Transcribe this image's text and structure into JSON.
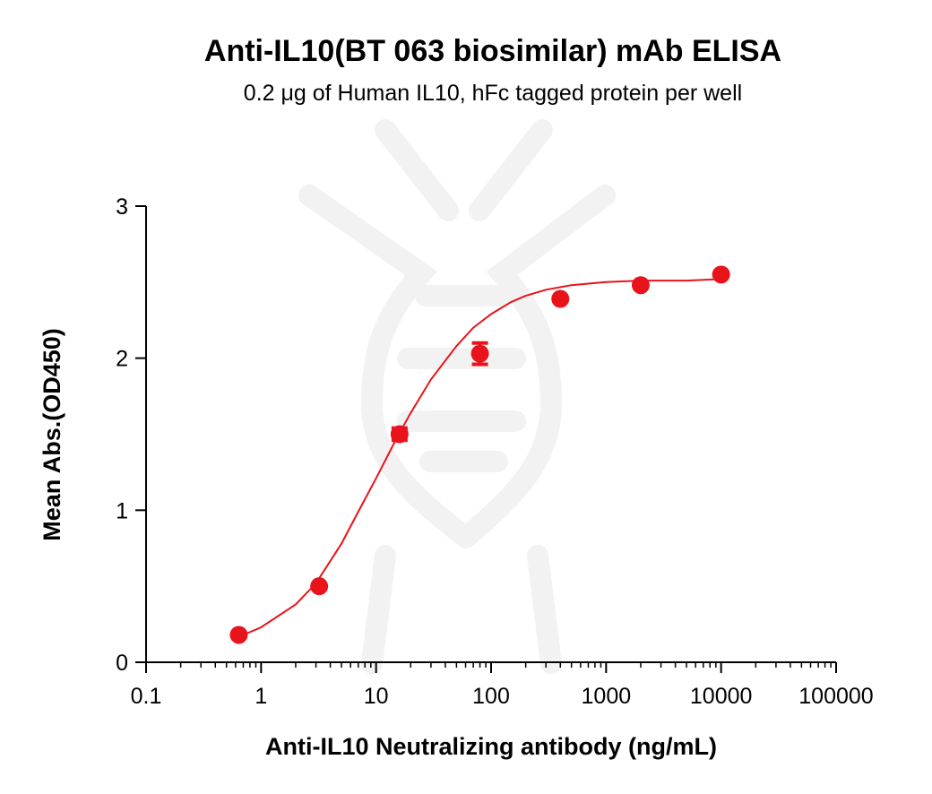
{
  "chart_data": {
    "type": "scatter",
    "title": "Anti-IL10(BT 063 biosimilar) mAb ELISA",
    "subtitle": "0.2 μg of Human IL10, hFc tagged protein per well",
    "xlabel": "Anti-IL10 Neutralizing antibody (ng/mL)",
    "ylabel": "Mean Abs.(OD450)",
    "xscale": "log",
    "xlim": [
      0.1,
      100000
    ],
    "ylim": [
      0,
      3
    ],
    "xticks": [
      "0.1",
      "1",
      "10",
      "100",
      "1000",
      "10000",
      "100000"
    ],
    "yticks": [
      "0",
      "1",
      "2",
      "3"
    ],
    "grid": false,
    "series": [
      {
        "x": [
          0.64,
          3.2,
          16,
          80,
          400,
          2000,
          10000
        ],
        "y": [
          0.18,
          0.5,
          1.5,
          2.03,
          2.39,
          2.48,
          2.55
        ],
        "err": [
          0,
          0,
          0.04,
          0.07,
          0,
          0,
          0
        ],
        "fit": "4PL sigmoid",
        "color": "#e8131b"
      }
    ],
    "fit_curve": {
      "x": [
        0.7,
        1,
        2,
        3,
        5,
        7,
        10,
        15,
        20,
        30,
        50,
        70,
        100,
        150,
        200,
        300,
        500,
        700,
        1000,
        2000,
        5000,
        10000
      ],
      "y": [
        0.18,
        0.23,
        0.38,
        0.52,
        0.78,
        0.99,
        1.21,
        1.47,
        1.64,
        1.86,
        2.08,
        2.2,
        2.29,
        2.37,
        2.41,
        2.45,
        2.48,
        2.49,
        2.5,
        2.51,
        2.51,
        2.52
      ]
    }
  },
  "colors": {
    "series": "#e8131b",
    "axis": "#000000"
  }
}
